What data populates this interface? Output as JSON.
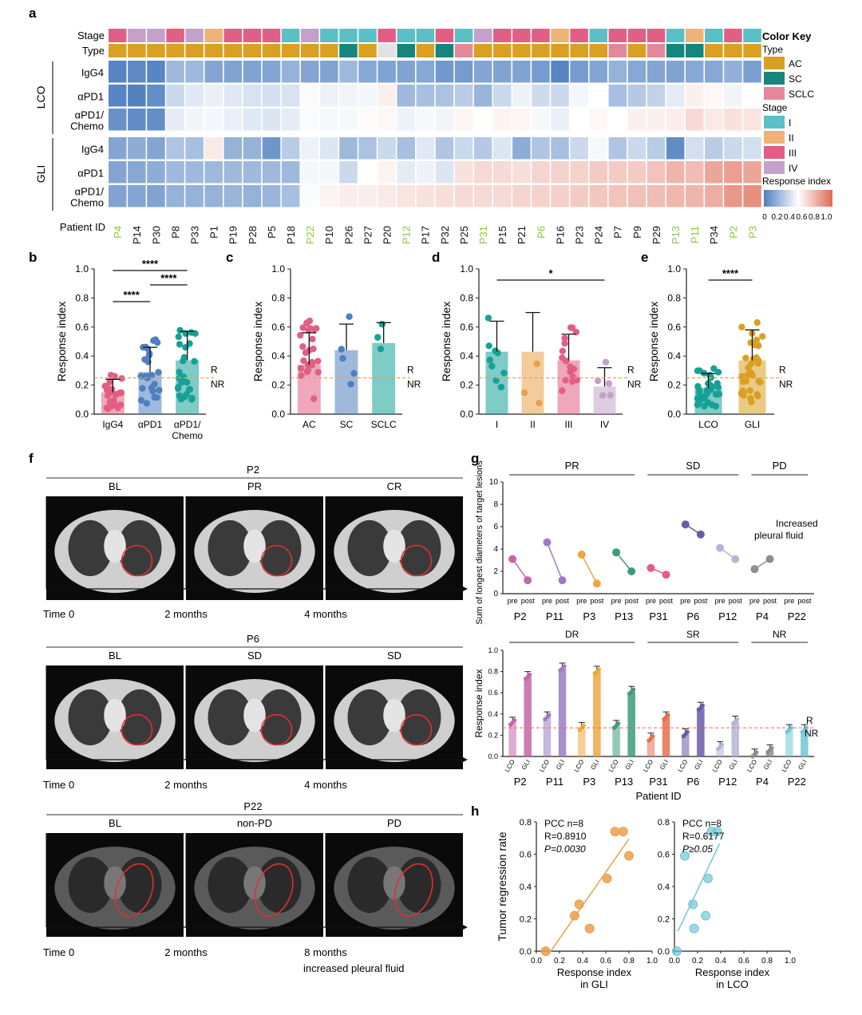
{
  "colors": {
    "AC": "#d9a023",
    "SC": "#16857c",
    "SCLC": "#e3879d",
    "I": "#5bbfc6",
    "II": "#efb277",
    "III": "#e15f84",
    "IV": "#c4a1cb",
    "blue": "#4f7fc0",
    "red": "#e06a55",
    "green_id": "#8cc63e",
    "orange": "#e9a04b",
    "cyan": "#6fc7d6"
  },
  "panel_a": {
    "label": "a",
    "stage_label": "Stage",
    "type_label": "Type",
    "patient_label": "Patient ID",
    "group_lco": "LCO",
    "group_gli": "GLI",
    "row_labels": [
      "IgG4",
      "αPD1",
      "αPD1/ Chemo",
      "IgG4",
      "αPD1",
      "αPD1/ Chemo"
    ],
    "patients": [
      "P4",
      "P14",
      "P30",
      "P8",
      "P33",
      "P1",
      "P19",
      "P28",
      "P5",
      "P18",
      "P22",
      "P10",
      "P26",
      "P27",
      "P20",
      "P12",
      "P17",
      "P32",
      "P25",
      "P31",
      "P15",
      "P21",
      "P6",
      "P16",
      "P23",
      "P24",
      "P7",
      "P9",
      "P29",
      "P13",
      "P11",
      "P34",
      "P2",
      "P3"
    ],
    "highlight_patients": [
      "P4",
      "P22",
      "P12",
      "P31",
      "P6",
      "P13",
      "P11",
      "P2",
      "P3"
    ],
    "stage": [
      "III",
      "IV",
      "IV",
      "III",
      "IV",
      "II",
      "III",
      "III",
      "III",
      "I",
      "IV",
      "I",
      "I",
      "I",
      "III",
      "I",
      "I",
      "III",
      "I",
      "IV",
      "III",
      "III",
      "III",
      "II",
      "III",
      "I",
      "III",
      "III",
      "III",
      "I",
      "II",
      "I",
      "III",
      "I"
    ],
    "type": [
      "AC",
      "AC",
      "AC",
      "AC",
      "AC",
      "AC",
      "AC",
      "AC",
      "AC",
      "AC",
      "AC",
      "AC",
      "SC",
      "AC",
      "NA",
      "SC",
      "AC",
      "SC",
      "SCLC",
      "AC",
      "AC",
      "AC",
      "AC",
      "AC",
      "AC",
      "AC",
      "SCLC",
      "AC",
      "SCLC",
      "SC",
      "SC",
      "AC",
      "AC",
      "AC"
    ],
    "heatmap": [
      [
        0.95,
        0.92,
        0.95,
        0.55,
        0.55,
        0.7,
        0.72,
        0.72,
        0.7,
        0.6,
        0.7,
        0.72,
        0.55,
        0.68,
        0.72,
        0.72,
        0.68,
        0.8,
        0.78,
        0.7,
        0.72,
        0.72,
        0.78,
        0.95,
        0.78,
        0.7,
        0.6,
        0.68,
        0.7,
        0.72,
        0.68,
        0.68,
        0.62,
        0.75
      ],
      [
        0.95,
        0.98,
        0.88,
        0.3,
        0.18,
        0.12,
        0.18,
        0.22,
        0.25,
        0.22,
        0.03,
        0.1,
        0.08,
        0.06,
        -0.1,
        0.55,
        0.5,
        0.48,
        0.4,
        0.58,
        0.3,
        0.1,
        0.28,
        0.3,
        0.06,
        0.0,
        0.5,
        0.42,
        0.35,
        0.15,
        -0.1,
        -0.05,
        0.08,
        0.0
      ],
      [
        0.85,
        0.9,
        0.88,
        0.15,
        0.08,
        0.06,
        0.12,
        0.18,
        0.2,
        0.15,
        0.03,
        0.05,
        0.05,
        -0.03,
        -0.05,
        0.1,
        0.05,
        0.08,
        -0.06,
        0.0,
        -0.08,
        -0.06,
        0.05,
        0.12,
        0.0,
        -0.05,
        0.0,
        -0.1,
        -0.1,
        -0.12,
        -0.25,
        -0.15,
        -0.2,
        -0.18
      ],
      [
        0.7,
        0.65,
        0.7,
        0.45,
        0.5,
        -0.15,
        0.6,
        0.6,
        0.82,
        0.4,
        0.1,
        0.2,
        0.55,
        0.48,
        0.3,
        0.5,
        0.18,
        0.45,
        0.3,
        0.42,
        0.2,
        0.65,
        0.45,
        0.5,
        0.3,
        0.05,
        0.45,
        0.3,
        0.4,
        0.9,
        0.25,
        0.4,
        0.3,
        0.25
      ],
      [
        0.7,
        0.68,
        0.65,
        0.55,
        0.55,
        0.55,
        0.55,
        0.55,
        0.55,
        0.55,
        0.06,
        0.06,
        0.3,
        0.0,
        -0.08,
        0.15,
        0.1,
        0.2,
        -0.2,
        -0.25,
        -0.25,
        -0.22,
        -0.28,
        -0.3,
        -0.3,
        -0.35,
        -0.35,
        -0.35,
        -0.4,
        -0.5,
        -0.45,
        -0.6,
        -0.65,
        -0.6
      ],
      [
        0.72,
        0.7,
        0.72,
        0.6,
        0.6,
        0.6,
        0.58,
        0.6,
        0.58,
        0.5,
        0.02,
        -0.08,
        -0.12,
        -0.12,
        -0.15,
        -0.18,
        -0.2,
        -0.22,
        -0.25,
        -0.25,
        -0.25,
        -0.28,
        -0.3,
        -0.32,
        -0.35,
        -0.38,
        -0.4,
        -0.42,
        -0.45,
        -0.48,
        -0.5,
        -0.55,
        -0.7,
        -0.75
      ]
    ],
    "color_key_title": "Color Key",
    "key_type_title": "Type",
    "key_types": [
      "AC",
      "SC",
      "SCLC"
    ],
    "key_stage_title": "Stage",
    "key_stages": [
      "I",
      "II",
      "III",
      "IV"
    ],
    "response_index_title": "Response index",
    "response_ticks": [
      "0",
      "0.2",
      "0.4",
      "0.6",
      "0.8",
      "1.0"
    ]
  },
  "chart_data": [
    {
      "panel": "b",
      "type": "bar",
      "ylabel": "Response index",
      "ylim": [
        0,
        1.0
      ],
      "yticks": [
        "0.0",
        "0.2",
        "0.4",
        "0.6",
        "0.8",
        "1.0"
      ],
      "categories": [
        "IgG4",
        "αPD1",
        "αPD1/ Chemo"
      ],
      "values": [
        0.15,
        0.29,
        0.37
      ],
      "sd": [
        0.09,
        0.17,
        0.2
      ],
      "significance": [
        "****",
        "****",
        "****"
      ],
      "threshold": 0.25,
      "threshold_labels": [
        "R",
        "NR"
      ]
    },
    {
      "panel": "c",
      "type": "bar",
      "ylabel": "Response index",
      "ylim": [
        0,
        1.0
      ],
      "yticks": [
        "0.0",
        "0.2",
        "0.4",
        "0.6",
        "0.8",
        "1.0"
      ],
      "categories": [
        "AC",
        "SC",
        "SCLC"
      ],
      "values": [
        0.34,
        0.44,
        0.49
      ],
      "sd": [
        0.22,
        0.18,
        0.14
      ],
      "threshold": 0.25,
      "threshold_labels": [
        "R",
        "NR"
      ]
    },
    {
      "panel": "d",
      "type": "bar",
      "ylabel": "Response index",
      "ylim": [
        0,
        1.0
      ],
      "yticks": [
        "0.0",
        "0.2",
        "0.4",
        "0.6",
        "0.8",
        "1.0"
      ],
      "categories": [
        "I",
        "II",
        "III",
        "IV"
      ],
      "values": [
        0.43,
        0.43,
        0.37,
        0.19
      ],
      "sd": [
        0.21,
        0.27,
        0.18,
        0.13
      ],
      "significance": [
        "*"
      ],
      "threshold": 0.25,
      "threshold_labels": [
        "R",
        "NR"
      ]
    },
    {
      "panel": "e",
      "type": "bar",
      "ylabel": "Response index",
      "ylim": [
        0,
        1.0
      ],
      "yticks": [
        "0.0",
        "0.2",
        "0.4",
        "0.6",
        "0.8",
        "1.0"
      ],
      "categories": [
        "LCO",
        "GLI"
      ],
      "values": [
        0.18,
        0.37
      ],
      "sd": [
        0.1,
        0.21
      ],
      "significance": [
        "****"
      ],
      "threshold": 0.25,
      "threshold_labels": [
        "R",
        "NR"
      ]
    },
    {
      "panel": "g-top",
      "type": "line",
      "ylabel": "Sum of longest diameters of target lesions",
      "ylim": [
        0,
        10
      ],
      "yticks": [
        "0",
        "2",
        "4",
        "6",
        "8",
        "10"
      ],
      "x_labels": [
        "pre",
        "post"
      ],
      "patients": [
        "P2",
        "P11",
        "P3",
        "P13",
        "P31",
        "P6",
        "P12",
        "P4",
        "P22"
      ],
      "groups": [
        "PR",
        "SD",
        "PD"
      ],
      "series": [
        {
          "patient": "P2",
          "pre": 3.1,
          "post": 1.2
        },
        {
          "patient": "P11",
          "pre": 4.6,
          "post": 1.2
        },
        {
          "patient": "P3",
          "pre": 3.5,
          "post": 0.9
        },
        {
          "patient": "P13",
          "pre": 3.7,
          "post": 2.0
        },
        {
          "patient": "P31",
          "pre": 2.3,
          "post": 1.7
        },
        {
          "patient": "P6",
          "pre": 6.2,
          "post": 5.3
        },
        {
          "patient": "P12",
          "pre": 4.1,
          "post": 3.1
        },
        {
          "patient": "P4",
          "pre": 2.2,
          "post": 3.1
        }
      ],
      "annotation": "Increased pleural fluid"
    },
    {
      "panel": "g-bottom",
      "type": "bar",
      "ylabel": "Response index",
      "xlabel": "Patient ID",
      "ylim": [
        0,
        1.0
      ],
      "yticks": [
        "0.0",
        "0.2",
        "0.4",
        "0.6",
        "0.8",
        "1.0"
      ],
      "categories": [
        "P2",
        "P11",
        "P3",
        "P13",
        "P31",
        "P6",
        "P12",
        "P4",
        "P22"
      ],
      "groups": [
        "DR",
        "SR",
        "NR"
      ],
      "sub_labels": [
        "LCO",
        "GLI"
      ],
      "series": [
        {
          "name": "LCO",
          "values": [
            0.32,
            0.37,
            0.27,
            0.29,
            0.17,
            0.21,
            0.09,
            0.02,
            0.25
          ]
        },
        {
          "name": "GLI",
          "values": [
            0.75,
            0.83,
            0.8,
            0.61,
            0.37,
            0.46,
            0.33,
            0.06,
            0.25
          ]
        }
      ],
      "threshold": 0.27,
      "threshold_labels": [
        "R",
        "NR"
      ]
    },
    {
      "panel": "h-left",
      "type": "scatter",
      "ylabel": "Tumor regression rate",
      "xlabel": "Response index in GLI",
      "xlim": [
        0,
        1.0
      ],
      "ylim": [
        0,
        0.8
      ],
      "xticks": [
        "0.0",
        "0.2",
        "0.4",
        "0.6",
        "0.8",
        "1.0"
      ],
      "yticks": [
        "0.0",
        "0.2",
        "0.4",
        "0.6",
        "0.8"
      ],
      "points": [
        [
          0.08,
          0.0
        ],
        [
          0.33,
          0.22
        ],
        [
          0.37,
          0.29
        ],
        [
          0.46,
          0.14
        ],
        [
          0.61,
          0.45
        ],
        [
          0.68,
          0.74
        ],
        [
          0.75,
          0.74
        ],
        [
          0.8,
          0.59
        ]
      ],
      "stats": [
        "PCC n=8",
        "R=0.8910",
        "P=0.0030"
      ]
    },
    {
      "panel": "h-right",
      "type": "scatter",
      "xlabel": "Response index in LCO",
      "xlim": [
        0,
        1.0
      ],
      "ylim": [
        0,
        0.8
      ],
      "xticks": [
        "0.0",
        "0.2",
        "0.4",
        "0.6",
        "0.8",
        "1.0"
      ],
      "yticks": [
        "0.0",
        "0.2",
        "0.4",
        "0.6",
        "0.8"
      ],
      "points": [
        [
          0.02,
          0.0
        ],
        [
          0.09,
          0.59
        ],
        [
          0.17,
          0.14
        ],
        [
          0.16,
          0.29
        ],
        [
          0.27,
          0.22
        ],
        [
          0.29,
          0.45
        ],
        [
          0.32,
          0.74
        ],
        [
          0.37,
          0.74
        ]
      ],
      "stats": [
        "PCC n=8",
        "R=0.6177",
        "P≥0.05"
      ]
    }
  ],
  "panel_f": {
    "label": "f",
    "cases": [
      {
        "patient": "P2",
        "stages": [
          "BL",
          "PR",
          "CR"
        ],
        "times": [
          "Time 0",
          "2 months",
          "4 months"
        ]
      },
      {
        "patient": "P6",
        "stages": [
          "BL",
          "SD",
          "SD"
        ],
        "times": [
          "Time 0",
          "2 months",
          "4 months"
        ]
      },
      {
        "patient": "P22",
        "stages": [
          "BL",
          "non-PD",
          "PD"
        ],
        "times": [
          "Time 0",
          "2 months",
          "8 months"
        ],
        "note": "increased pleural fluid"
      }
    ]
  },
  "labels": {
    "b": "b",
    "c": "c",
    "d": "d",
    "e": "e",
    "g": "g",
    "h": "h"
  }
}
